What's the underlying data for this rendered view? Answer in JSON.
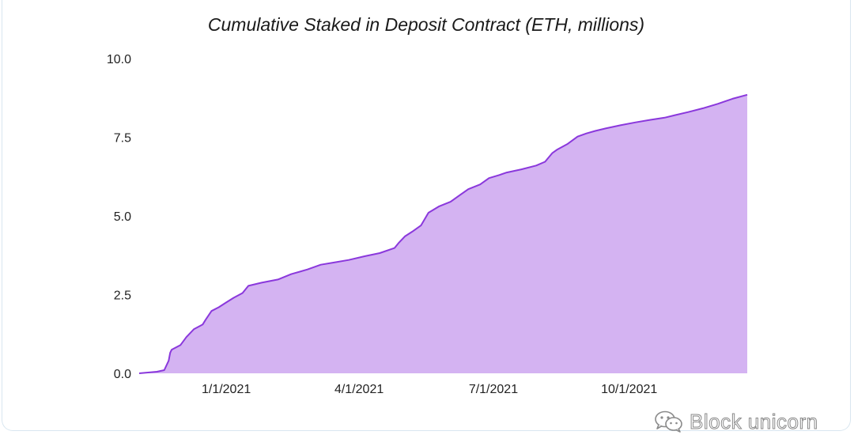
{
  "chart_data": {
    "type": "area",
    "title": "Cumulative Staked in Deposit Contract (ETH, millions)",
    "xlabel": "",
    "ylabel": "",
    "x_range": [
      "2020-11-03",
      "2021-12-20"
    ],
    "ylim": [
      0,
      10
    ],
    "y_ticks": [
      0.0,
      2.5,
      5.0,
      7.5,
      10.0
    ],
    "y_tick_labels": [
      "0.0",
      "2.5",
      "5.0",
      "7.5",
      "10.0"
    ],
    "x_ticks": [
      "2021-01-01",
      "2021-04-01",
      "2021-07-01",
      "2021-10-01"
    ],
    "x_tick_labels": [
      "1/1/2021",
      "4/1/2021",
      "7/1/2021",
      "10/1/2021"
    ],
    "grid": false,
    "legend": "none",
    "fill_color": "#d4b3f2",
    "line_color": "#8a38dc",
    "series": [
      {
        "x": [
          "2020-11-03",
          "2020-11-15",
          "2020-11-20",
          "2020-11-23",
          "2020-11-24",
          "2020-11-25",
          "2020-12-01",
          "2020-12-05",
          "2020-12-10",
          "2020-12-16",
          "2020-12-18",
          "2020-12-22",
          "2020-12-27",
          "2021-01-01",
          "2021-01-06",
          "2021-01-12",
          "2021-01-16",
          "2021-01-25",
          "2021-02-05",
          "2021-02-14",
          "2021-02-25",
          "2021-03-06",
          "2021-03-15",
          "2021-03-25",
          "2021-04-05",
          "2021-04-15",
          "2021-04-25",
          "2021-04-28",
          "2021-05-02",
          "2021-05-07",
          "2021-05-13",
          "2021-05-18",
          "2021-05-25",
          "2021-06-02",
          "2021-06-08",
          "2021-06-14",
          "2021-06-22",
          "2021-06-28",
          "2021-07-05",
          "2021-07-10",
          "2021-07-20",
          "2021-07-30",
          "2021-08-05",
          "2021-08-10",
          "2021-08-13",
          "2021-08-20",
          "2021-08-27",
          "2021-09-02",
          "2021-09-08",
          "2021-09-15",
          "2021-09-25",
          "2021-10-05",
          "2021-10-15",
          "2021-10-25",
          "2021-11-01",
          "2021-11-10",
          "2021-11-20",
          "2021-11-30",
          "2021-12-10",
          "2021-12-20"
        ],
        "values": [
          0.0,
          0.05,
          0.1,
          0.4,
          0.65,
          0.75,
          0.9,
          1.15,
          1.4,
          1.55,
          1.7,
          1.98,
          2.1,
          2.25,
          2.4,
          2.55,
          2.78,
          2.88,
          2.98,
          3.15,
          3.3,
          3.45,
          3.52,
          3.6,
          3.72,
          3.82,
          3.98,
          4.15,
          4.35,
          4.5,
          4.7,
          5.1,
          5.3,
          5.45,
          5.65,
          5.85,
          6.0,
          6.2,
          6.3,
          6.38,
          6.48,
          6.6,
          6.72,
          7.0,
          7.1,
          7.28,
          7.52,
          7.62,
          7.7,
          7.78,
          7.88,
          7.97,
          8.05,
          8.12,
          8.2,
          8.3,
          8.42,
          8.56,
          8.72,
          8.85
        ]
      }
    ]
  },
  "watermark": {
    "icon": "wechat-icon",
    "text": "Block unicorn",
    "color": "#8a8a8a"
  }
}
